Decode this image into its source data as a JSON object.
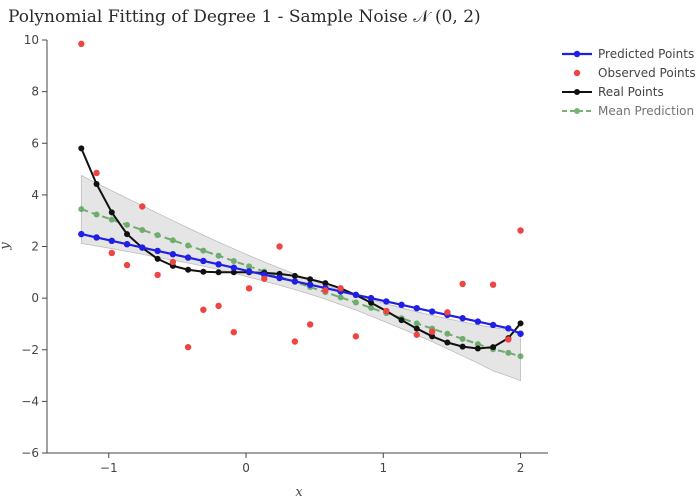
{
  "chart_data": {
    "type": "line",
    "title": "Polynomial Fitting of Degree 1 - Sample Noise 𝒩 (0, 2)",
    "xlabel": "x",
    "ylabel": "y",
    "xlim": [
      -1.45,
      2.2
    ],
    "ylim": [
      -6,
      10
    ],
    "x_ticks": [
      -1,
      0,
      1,
      2
    ],
    "x_tick_labels": [
      "−1",
      "0",
      "1",
      "2"
    ],
    "y_ticks": [
      -6,
      -4,
      -2,
      0,
      2,
      4,
      6,
      8,
      10
    ],
    "y_tick_labels": [
      "−6",
      "−4",
      "−2",
      "0",
      "2",
      "4",
      "6",
      "8",
      "10"
    ],
    "grid": false,
    "legend_position": "top-right",
    "colors": {
      "predicted": "#1f1fe6",
      "observed": "#ef4444",
      "real": "#111111",
      "mean": "#4a9a4a",
      "band": "#d0d0d0"
    },
    "x": [
      -1.2,
      -1.089,
      -0.978,
      -0.867,
      -0.756,
      -0.644,
      -0.533,
      -0.422,
      -0.311,
      -0.2,
      -0.089,
      0.022,
      0.133,
      0.244,
      0.356,
      0.467,
      0.578,
      0.689,
      0.8,
      0.911,
      1.022,
      1.133,
      1.244,
      1.356,
      1.467,
      1.578,
      1.689,
      1.8,
      1.911,
      2.0
    ],
    "series": [
      {
        "name": "Predicted Points",
        "style": "line+markers",
        "values": [
          2.48,
          2.35,
          2.22,
          2.09,
          1.96,
          1.83,
          1.7,
          1.57,
          1.44,
          1.31,
          1.18,
          1.04,
          0.91,
          0.78,
          0.65,
          0.52,
          0.39,
          0.26,
          0.13,
          0.0,
          -0.13,
          -0.26,
          -0.39,
          -0.52,
          -0.65,
          -0.78,
          -0.91,
          -1.04,
          -1.17,
          -1.38
        ]
      },
      {
        "name": "Observed Points",
        "style": "markers",
        "x": [
          -1.2,
          -1.089,
          -0.978,
          -0.867,
          -0.756,
          -0.644,
          -0.533,
          -0.422,
          -0.311,
          -0.2,
          -0.089,
          0.022,
          0.133,
          0.244,
          0.356,
          0.467,
          0.578,
          0.689,
          0.8,
          1.022,
          1.244,
          1.356,
          1.467,
          1.578,
          1.8,
          1.911,
          2.0
        ],
        "values": [
          9.85,
          4.85,
          1.75,
          1.28,
          3.55,
          0.9,
          1.4,
          -1.9,
          -0.45,
          -0.3,
          -1.32,
          0.38,
          0.75,
          2.0,
          -1.68,
          -1.02,
          0.3,
          0.38,
          -1.48,
          -0.5,
          -1.42,
          -1.3,
          -0.55,
          0.55,
          0.52,
          -1.6,
          2.62
        ]
      },
      {
        "name": "Real Points",
        "style": "line+markers",
        "values": [
          5.8,
          4.42,
          3.32,
          2.48,
          1.95,
          1.52,
          1.25,
          1.1,
          1.02,
          1.0,
          1.0,
          1.0,
          0.98,
          0.94,
          0.86,
          0.73,
          0.58,
          0.38,
          0.12,
          -0.18,
          -0.5,
          -0.85,
          -1.18,
          -1.48,
          -1.72,
          -1.88,
          -1.95,
          -1.9,
          -1.55,
          -0.98
        ]
      },
      {
        "name": "Mean Prediction",
        "style": "dashed+markers",
        "values": [
          3.45,
          3.24,
          3.04,
          2.84,
          2.64,
          2.44,
          2.24,
          2.04,
          1.84,
          1.64,
          1.44,
          1.23,
          1.03,
          0.83,
          0.63,
          0.43,
          0.23,
          0.03,
          -0.17,
          -0.38,
          -0.58,
          -0.78,
          -0.98,
          -1.18,
          -1.38,
          -1.58,
          -1.78,
          -1.98,
          -2.12,
          -2.25
        ]
      }
    ],
    "confidence_band": {
      "upper": [
        4.75,
        4.45,
        4.16,
        3.87,
        3.58,
        3.29,
        3.0,
        2.72,
        2.44,
        2.17,
        1.91,
        1.65,
        1.4,
        1.16,
        0.93,
        0.71,
        0.5,
        0.31,
        0.12,
        -0.06,
        -0.22,
        -0.38,
        -0.53,
        -0.67,
        -0.8,
        -0.92,
        -1.04,
        -1.14,
        -1.22,
        -1.3
      ],
      "lower": [
        2.12,
        2.02,
        1.92,
        1.81,
        1.7,
        1.58,
        1.47,
        1.36,
        1.24,
        1.11,
        0.97,
        0.81,
        0.66,
        0.5,
        0.33,
        0.15,
        -0.04,
        -0.25,
        -0.46,
        -0.7,
        -0.94,
        -1.18,
        -1.43,
        -1.69,
        -1.96,
        -2.24,
        -2.52,
        -2.82,
        -3.02,
        -3.2
      ]
    }
  }
}
